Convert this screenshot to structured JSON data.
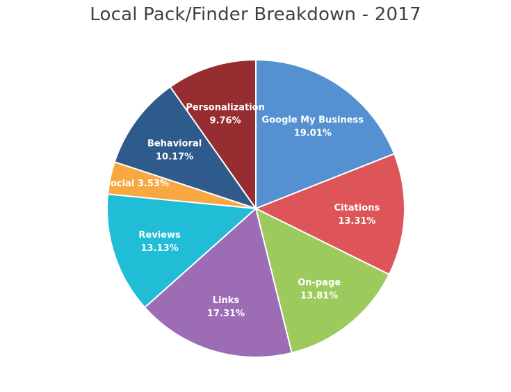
{
  "chart_data": {
    "type": "pie",
    "title": "Local Pack/Finder Breakdown - 2017",
    "start_angle_deg": 0,
    "direction": "clockwise",
    "legend": "none",
    "slices": [
      {
        "label": "Google My Business",
        "value": 19.01,
        "value_label": "19.01%",
        "color": "#5591D0",
        "label_style": "stacked"
      },
      {
        "label": "Citations",
        "value": 13.31,
        "value_label": "13.31%",
        "color": "#DD5558",
        "label_style": "stacked"
      },
      {
        "label": "On-page",
        "value": 13.81,
        "value_label": "13.81%",
        "color": "#9DCA5C",
        "label_style": "stacked"
      },
      {
        "label": "Links",
        "value": 17.31,
        "value_label": "17.31%",
        "color": "#9C6DB5",
        "label_style": "stacked"
      },
      {
        "label": "Reviews",
        "value": 13.13,
        "value_label": "13.13%",
        "color": "#21BCD6",
        "label_style": "stacked"
      },
      {
        "label": "Social",
        "value": 3.53,
        "value_label": "3.53%",
        "color": "#F9A741",
        "label_style": "inline"
      },
      {
        "label": "Behavioral",
        "value": 10.17,
        "value_label": "10.17%",
        "color": "#2F5A8C",
        "label_style": "stacked"
      },
      {
        "label": "Personalization",
        "value": 9.76,
        "value_label": "9.76%",
        "color": "#962D30",
        "label_style": "stacked"
      }
    ]
  }
}
